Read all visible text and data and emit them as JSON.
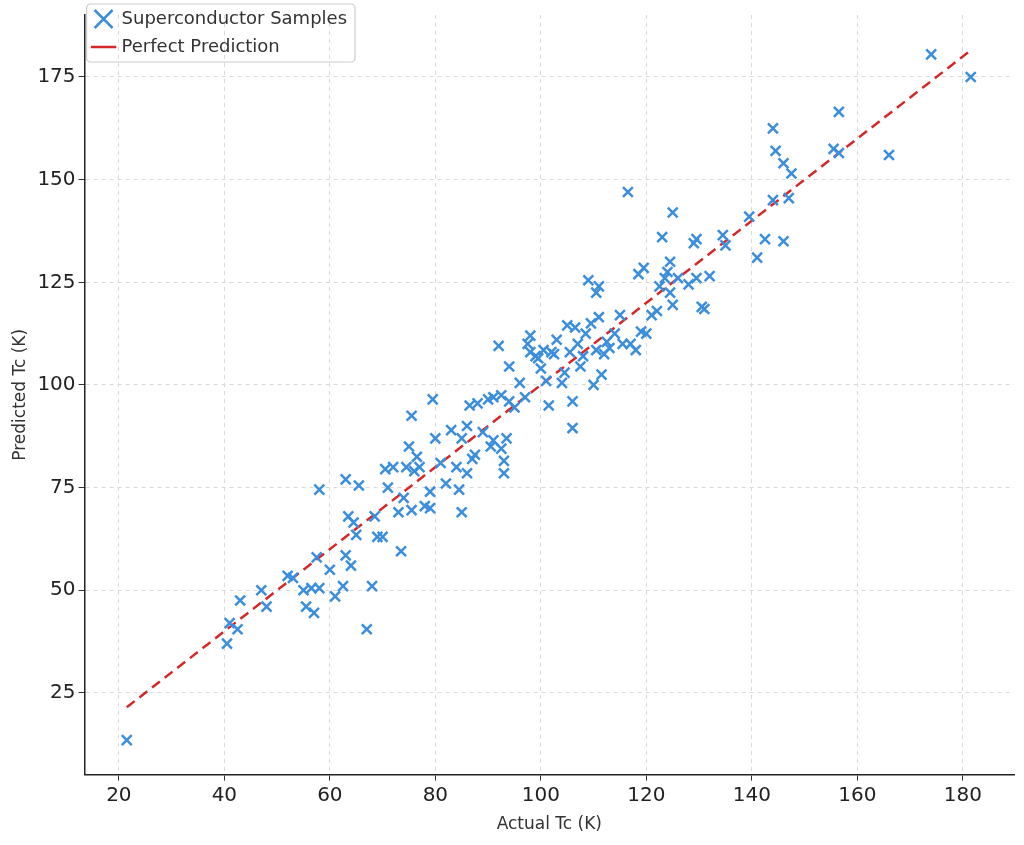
{
  "chart_data": {
    "type": "scatter",
    "xlabel": "Actual Tc (K)",
    "ylabel": "Predicted Tc (K)",
    "xlim": [
      13.5,
      189.7
    ],
    "ylim": [
      5.1,
      190.1
    ],
    "xticks": [
      20,
      40,
      60,
      80,
      100,
      120,
      140,
      160,
      180
    ],
    "yticks": [
      25,
      50,
      75,
      100,
      125,
      150,
      175
    ],
    "grid": true,
    "legend": "top left",
    "marker": "cross",
    "series": [
      {
        "type": "scatter",
        "name": "Superconductor Samples",
        "color": "#3b8ede",
        "x": [
          21.5,
          40.5,
          41,
          42.5,
          43,
          47,
          48,
          52,
          53,
          55,
          55.5,
          57,
          56.5,
          57.5,
          58,
          58,
          60,
          61,
          62.5,
          63,
          63,
          63.5,
          64,
          64.5,
          65,
          65.5,
          67,
          68,
          68.5,
          69,
          70,
          70.5,
          71,
          72,
          73,
          73.5,
          74,
          74.5,
          75,
          75.5,
          75.5,
          76,
          76.5,
          77,
          78,
          79,
          79,
          79.5,
          80,
          81,
          82,
          83,
          84,
          84.5,
          85,
          85,
          86,
          86,
          86.5,
          87,
          87.5,
          88,
          89,
          90,
          90.5,
          91,
          91,
          92,
          92.5,
          92.5,
          93,
          93,
          93.5,
          94,
          94,
          95,
          96,
          97,
          97.5,
          98,
          98,
          99,
          99.5,
          100,
          100.5,
          101,
          101.5,
          102,
          102.5,
          103,
          104,
          104.5,
          105,
          105.5,
          106,
          106,
          106.5,
          107,
          107.5,
          108,
          108.5,
          109,
          109.5,
          110,
          110.5,
          110.5,
          111,
          111,
          111.5,
          112,
          112.5,
          113,
          114,
          115,
          115.5,
          116.5,
          117,
          118,
          118.5,
          119,
          119.5,
          120,
          121,
          122,
          122.5,
          123,
          123.5,
          124,
          124.5,
          124.5,
          125,
          125,
          126,
          128,
          129,
          129.5,
          129.5,
          130.5,
          131,
          132,
          134.5,
          135,
          139.5,
          141,
          142.5,
          144,
          144,
          144.5,
          146,
          146,
          147,
          147.5,
          155.5,
          156.5,
          156.5,
          166,
          174,
          181.5
        ],
        "values": [
          13.5,
          37,
          42,
          40.5,
          47.5,
          50,
          46,
          53.5,
          53,
          50,
          46,
          44.5,
          50.5,
          58,
          50.5,
          74.5,
          55,
          48.5,
          51,
          77,
          58.5,
          68,
          56,
          66.5,
          63.5,
          75.5,
          40.5,
          51,
          68,
          63,
          63,
          79.5,
          75,
          80,
          69,
          59.5,
          72.5,
          80,
          85,
          69.5,
          92.5,
          79,
          82.5,
          80,
          70.5,
          70,
          74,
          96.5,
          87,
          81,
          76,
          89,
          80,
          74.5,
          69,
          87,
          90,
          78.5,
          95,
          82,
          83,
          95.5,
          88.5,
          96.5,
          85,
          86.5,
          97,
          109.5,
          97.5,
          84.5,
          81.5,
          78.5,
          87,
          96,
          104.5,
          94.5,
          100.5,
          97,
          110,
          112,
          108,
          107,
          106.5,
          104,
          108.5,
          101,
          95,
          108,
          107.5,
          111,
          100.5,
          103,
          114.5,
          108,
          96,
          89.5,
          114,
          110,
          104.5,
          107,
          112.5,
          125.5,
          115,
          100,
          108.5,
          122.5,
          116.5,
          124,
          102.5,
          107.5,
          110.5,
          109,
          112.5,
          117,
          110,
          147,
          110,
          108.5,
          127,
          113,
          128.5,
          112.5,
          117,
          118,
          124,
          136,
          126,
          127.5,
          130,
          122.5,
          119.5,
          142,
          126,
          124.5,
          134.5,
          135.5,
          126,
          119,
          118.5,
          126.5,
          136.5,
          134,
          141,
          131,
          135.5,
          162.5,
          145,
          157,
          154,
          135,
          145.5,
          151.5,
          157.5,
          166.5,
          156.5,
          156,
          180.5,
          175
        ]
      },
      {
        "type": "line",
        "name": "Perfect Prediction",
        "color": "#d62728",
        "line_style": "dashed",
        "marker": "none",
        "x": [
          21.5,
          181.5
        ],
        "values": [
          21.5,
          181.5
        ]
      }
    ]
  }
}
